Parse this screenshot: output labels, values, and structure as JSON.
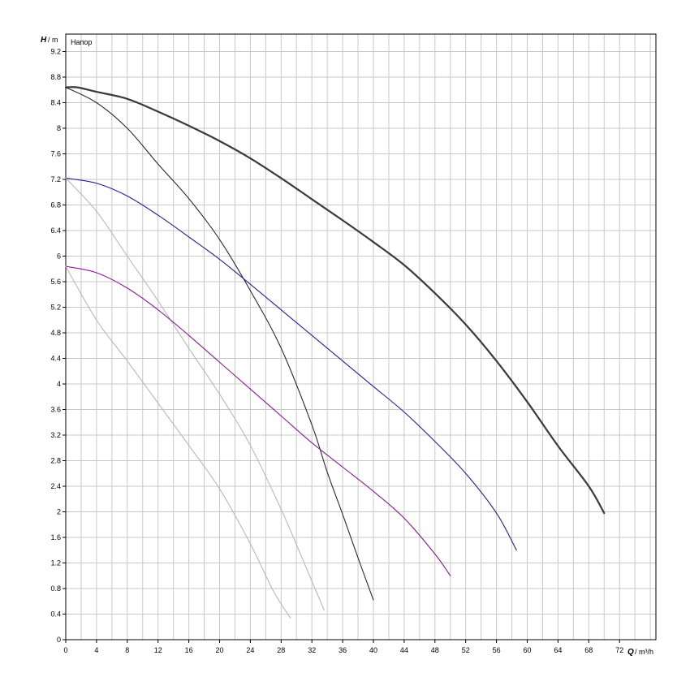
{
  "chart_data": {
    "type": "line",
    "title": "Напор",
    "xlabel": {
      "symbol": "Q",
      "unit": "m³/h"
    },
    "ylabel": {
      "symbol": "H",
      "unit": "m"
    },
    "xlim": [
      0,
      77
    ],
    "ylim": [
      0,
      9.4
    ],
    "x_ticks": [
      0,
      4,
      8,
      12,
      16,
      20,
      24,
      28,
      32,
      36,
      40,
      44,
      48,
      52,
      56,
      60,
      64,
      68,
      72
    ],
    "y_ticks": [
      0,
      0.4,
      0.8,
      1.2,
      1.6,
      2,
      2.4,
      2.8,
      3.2,
      3.6,
      4,
      4.4,
      4.8,
      5.2,
      5.6,
      6,
      6.4,
      6.8,
      7.2,
      7.6,
      8,
      8.4,
      8.8,
      9.2
    ],
    "grid": true,
    "series": [
      {
        "color": "#3a3a3a",
        "width": 2.2,
        "points": [
          [
            0,
            8.64
          ],
          [
            1.5,
            8.64
          ],
          [
            4,
            8.57
          ],
          [
            8,
            8.46
          ],
          [
            12,
            8.26
          ],
          [
            16,
            8.04
          ],
          [
            20,
            7.8
          ],
          [
            24,
            7.53
          ],
          [
            28,
            7.22
          ],
          [
            32,
            6.89
          ],
          [
            36,
            6.56
          ],
          [
            40,
            6.22
          ],
          [
            44,
            5.86
          ],
          [
            48,
            5.42
          ],
          [
            52,
            4.93
          ],
          [
            56,
            4.36
          ],
          [
            60,
            3.72
          ],
          [
            64,
            3.03
          ],
          [
            68,
            2.4
          ],
          [
            70,
            1.98
          ]
        ]
      },
      {
        "color": "#2a2a2a",
        "width": 1.1,
        "points": [
          [
            0,
            8.64
          ],
          [
            4,
            8.4
          ],
          [
            8,
            8.0
          ],
          [
            12,
            7.44
          ],
          [
            16,
            6.9
          ],
          [
            20,
            6.26
          ],
          [
            24,
            5.46
          ],
          [
            28,
            4.56
          ],
          [
            32,
            3.36
          ],
          [
            34,
            2.62
          ],
          [
            36,
            1.96
          ],
          [
            38,
            1.28
          ],
          [
            40,
            0.62
          ]
        ]
      },
      {
        "color": "#2020a0",
        "width": 1.1,
        "points": [
          [
            0,
            7.22
          ],
          [
            4,
            7.14
          ],
          [
            8,
            6.94
          ],
          [
            12,
            6.64
          ],
          [
            16,
            6.3
          ],
          [
            20,
            5.95
          ],
          [
            24,
            5.56
          ],
          [
            28,
            5.16
          ],
          [
            32,
            4.76
          ],
          [
            36,
            4.36
          ],
          [
            40,
            3.96
          ],
          [
            44,
            3.56
          ],
          [
            48,
            3.1
          ],
          [
            52,
            2.6
          ],
          [
            56,
            1.98
          ],
          [
            58.6,
            1.4
          ]
        ]
      },
      {
        "color": "#b8b8b8",
        "width": 1.1,
        "points": [
          [
            0,
            7.22
          ],
          [
            4,
            6.7
          ],
          [
            8,
            6.0
          ],
          [
            12,
            5.3
          ],
          [
            16,
            4.56
          ],
          [
            20,
            3.84
          ],
          [
            24,
            3.04
          ],
          [
            28,
            2.04
          ],
          [
            31,
            1.2
          ],
          [
            33.6,
            0.46
          ]
        ]
      },
      {
        "color": "#8a1a9a",
        "width": 1.1,
        "points": [
          [
            0,
            5.84
          ],
          [
            4,
            5.74
          ],
          [
            8,
            5.5
          ],
          [
            12,
            5.16
          ],
          [
            16,
            4.76
          ],
          [
            20,
            4.34
          ],
          [
            24,
            3.92
          ],
          [
            28,
            3.5
          ],
          [
            32,
            3.08
          ],
          [
            36,
            2.7
          ],
          [
            40,
            2.32
          ],
          [
            44,
            1.9
          ],
          [
            48,
            1.34
          ],
          [
            50,
            1.0
          ]
        ]
      },
      {
        "color": "#b8b8b8",
        "width": 1.1,
        "points": [
          [
            0,
            5.84
          ],
          [
            4,
            5.0
          ],
          [
            8,
            4.36
          ],
          [
            12,
            3.7
          ],
          [
            16,
            3.04
          ],
          [
            20,
            2.36
          ],
          [
            24,
            1.5
          ],
          [
            27,
            0.76
          ],
          [
            29.2,
            0.34
          ]
        ]
      }
    ]
  }
}
